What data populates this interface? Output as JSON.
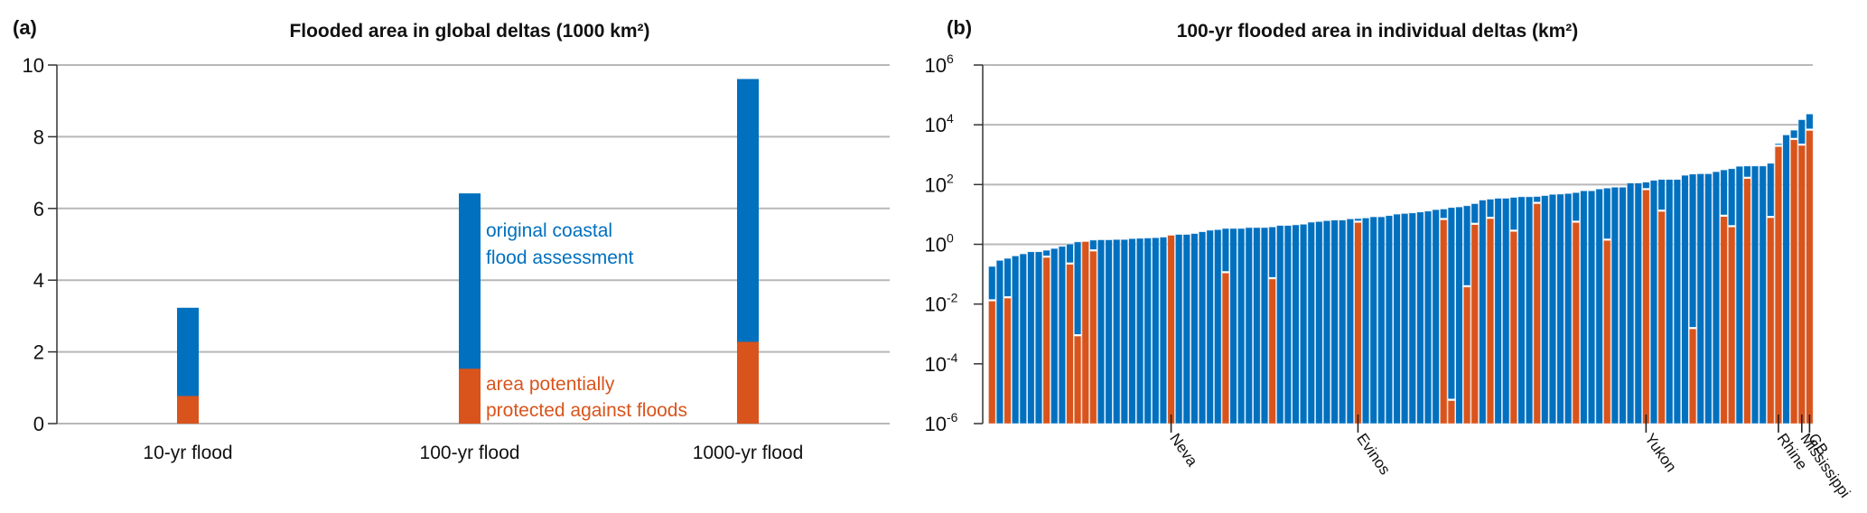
{
  "colors": {
    "original": "#0070bf",
    "protected": "#d9541c",
    "grid": "#b8b8b8",
    "text": "#111111"
  },
  "chart_data": [
    {
      "panel": "(a)",
      "type": "bar",
      "stacked": true,
      "title": "Flooded area in global deltas (1000 km²)",
      "xlabel": "",
      "ylabel": "",
      "ylim": [
        0,
        10
      ],
      "yticks": [
        0,
        2,
        4,
        6,
        8,
        10
      ],
      "grid": true,
      "categories": [
        "10-yr flood",
        "100-yr flood",
        "1000-yr flood"
      ],
      "series": [
        {
          "name": "original coastal flood assessment",
          "values": [
            3.23,
            6.42,
            9.61
          ]
        },
        {
          "name": "area potentially protected against floods",
          "values": [
            0.77,
            1.53,
            2.28
          ]
        }
      ],
      "annotations": [
        {
          "text_lines": [
            "original coastal",
            "flood assessment"
          ],
          "series": "original",
          "near": "100-yr flood"
        },
        {
          "text_lines": [
            "area potentially",
            "protected against floods"
          ],
          "series": "protected",
          "near": "100-yr flood"
        }
      ]
    },
    {
      "panel": "(b)",
      "type": "bar",
      "stacked": false,
      "overlay": true,
      "title": "100-yr flooded area in individual deltas (km²)",
      "xlabel": "",
      "ylabel": "",
      "yscale": "log",
      "ylim_log10": [
        -6,
        6
      ],
      "yticks_log10": [
        -6,
        -4,
        -2,
        0,
        2,
        4,
        6
      ],
      "ytick_labels": [
        {
          "base": "10",
          "exp": "-6"
        },
        {
          "base": "10",
          "exp": "-4"
        },
        {
          "base": "10",
          "exp": "-2"
        },
        {
          "base": "10",
          "exp": "0"
        },
        {
          "base": "10",
          "exp": "2"
        },
        {
          "base": "10",
          "exp": "4"
        },
        {
          "base": "10",
          "exp": "6"
        }
      ],
      "gridlines_log10": [
        0,
        2,
        4,
        6
      ],
      "labeled_deltas": [
        {
          "index": 24,
          "name": "Neva"
        },
        {
          "index": 48,
          "name": "Evinos"
        },
        {
          "index": 85,
          "name": "Yukon"
        },
        {
          "index": 102,
          "name": "Rhine"
        },
        {
          "index": 105,
          "name": "Mississippi"
        },
        {
          "index": 106,
          "name": "GB"
        }
      ],
      "series_note": "values are log10(km²); protected null = no protected area",
      "total_log10": [
        -0.74,
        -0.54,
        -0.47,
        -0.39,
        -0.32,
        -0.25,
        -0.25,
        -0.2,
        -0.14,
        -0.07,
        0.01,
        0.08,
        0.09,
        0.14,
        0.15,
        0.15,
        0.16,
        0.16,
        0.19,
        0.2,
        0.21,
        0.22,
        0.24,
        0.3,
        0.33,
        0.33,
        0.36,
        0.42,
        0.47,
        0.49,
        0.53,
        0.53,
        0.53,
        0.56,
        0.56,
        0.56,
        0.58,
        0.63,
        0.63,
        0.65,
        0.67,
        0.74,
        0.76,
        0.79,
        0.81,
        0.81,
        0.85,
        0.86,
        0.88,
        0.92,
        0.92,
        0.96,
        1.01,
        1.03,
        1.05,
        1.08,
        1.11,
        1.16,
        1.18,
        1.23,
        1.25,
        1.29,
        1.36,
        1.48,
        1.51,
        1.54,
        1.54,
        1.57,
        1.59,
        1.59,
        1.6,
        1.63,
        1.67,
        1.68,
        1.7,
        1.73,
        1.79,
        1.79,
        1.85,
        1.88,
        1.91,
        1.91,
        2.05,
        2.05,
        2.08,
        2.14,
        2.17,
        2.17,
        2.17,
        2.31,
        2.35,
        2.36,
        2.36,
        2.43,
        2.49,
        2.53,
        2.61,
        2.62,
        2.62,
        2.62,
        2.71,
        3.37,
        3.66,
        3.82,
        4.17,
        4.36
      ],
      "protected_log10": [
        -1.9,
        null,
        -1.8,
        null,
        null,
        null,
        null,
        -0.44,
        null,
        null,
        -0.67,
        -3.07,
        0.09,
        -0.23,
        null,
        null,
        null,
        null,
        null,
        null,
        null,
        null,
        null,
        0.3,
        null,
        null,
        null,
        null,
        null,
        null,
        -0.96,
        null,
        null,
        null,
        null,
        null,
        -1.16,
        null,
        null,
        null,
        null,
        null,
        null,
        null,
        null,
        null,
        null,
        0.73,
        null,
        null,
        null,
        null,
        null,
        null,
        null,
        null,
        null,
        null,
        0.82,
        -5.23,
        null,
        -1.43,
        0.66,
        null,
        0.86,
        null,
        null,
        0.43,
        null,
        null,
        1.36,
        null,
        null,
        null,
        null,
        0.73,
        null,
        null,
        null,
        0.13,
        null,
        null,
        null,
        null,
        1.82,
        null,
        1.1,
        null,
        null,
        null,
        -2.83,
        null,
        null,
        null,
        0.93,
        0.58,
        null,
        2.2,
        null,
        null,
        0.89,
        3.27,
        null,
        3.5,
        3.31,
        3.81
      ]
    }
  ]
}
